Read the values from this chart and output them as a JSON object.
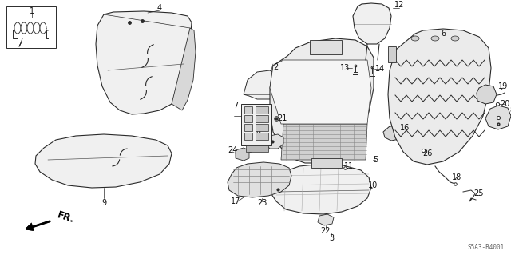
{
  "background_color": "#ffffff",
  "diagram_code": "S5A3-B4001",
  "line_color": "#2a2a2a",
  "light_fill": "#f5f5f5",
  "mid_fill": "#e8e8e8",
  "part_fontsize": 7,
  "label_fontsize": 7
}
